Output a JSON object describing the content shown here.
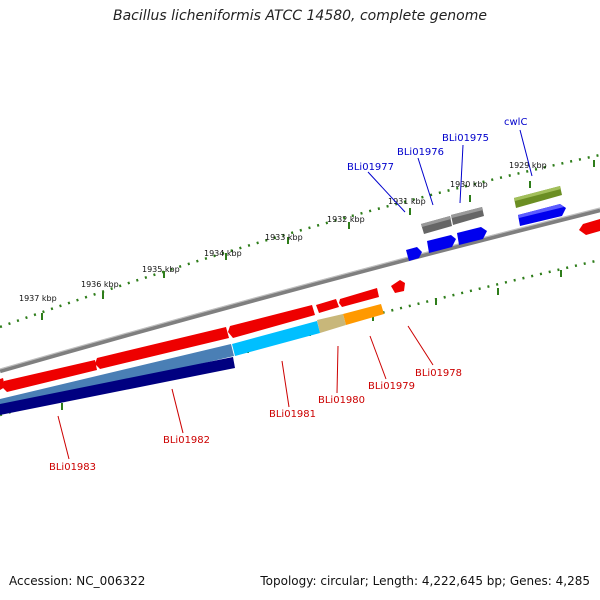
{
  "title": "Bacillus licheniformis ATCC 14580, complete genome",
  "footer": {
    "accession": "Accession: NC_006322",
    "topology": "Topology: circular; Length: 4,222,645 bp; Genes: 4,285"
  },
  "scale_labels": [
    "1937 kbp",
    "1936 kbp",
    "1935 kbp",
    "1934 kbp",
    "1933 kbp",
    "1932 kbp",
    "1931 kbp",
    "1930 kbp",
    "1929 kbp"
  ],
  "forward_labels": [
    "cwlC",
    "BLi01975",
    "BLi01976",
    "BLi01977"
  ],
  "reverse_labels": [
    "BLi01978",
    "BLi01979",
    "BLi01980",
    "BLi01981",
    "BLi01982",
    "BLi01983"
  ],
  "colors": {
    "forward_label": "#0000cc",
    "reverse_label": "#cc0000",
    "tick": "#2e7d1a",
    "backbone": "#808080",
    "red": "#ee0000",
    "blue": "#0000ee",
    "gray": "#666666",
    "olive": "#6b8e23",
    "steelblue": "#4a7fb5",
    "navy": "#000080",
    "cyan": "#00bfff",
    "khaki": "#c8b77a",
    "orange": "#ff9900"
  }
}
